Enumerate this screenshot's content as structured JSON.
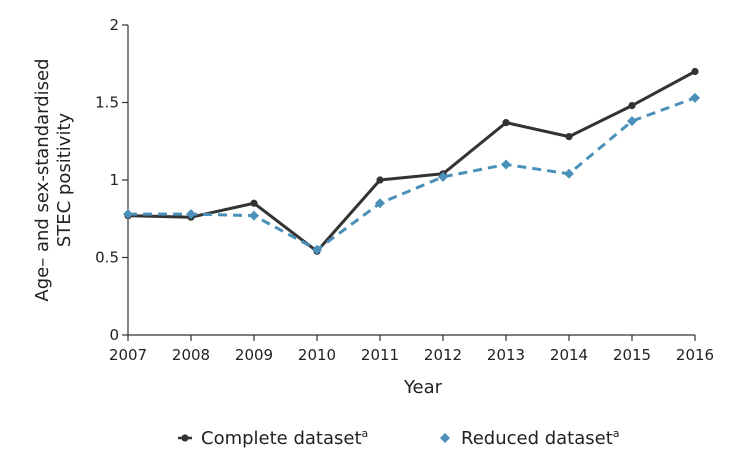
{
  "chart_data": {
    "type": "line",
    "x": [
      2007,
      2008,
      2009,
      2010,
      2011,
      2012,
      2013,
      2014,
      2015,
      2016
    ],
    "categories": [
      "2007",
      "2008",
      "2009",
      "2010",
      "2011",
      "2012",
      "2013",
      "2014",
      "2015",
      "2016"
    ],
    "series": [
      {
        "name": "Complete dataset",
        "name_superscript": "a",
        "values": [
          0.77,
          0.76,
          0.85,
          0.54,
          1.0,
          1.04,
          1.37,
          1.28,
          1.48,
          1.7
        ],
        "color": "#333333",
        "line_style": "solid",
        "marker": "circle"
      },
      {
        "name": "Reduced dataset",
        "name_superscript": "a",
        "values": [
          0.78,
          0.78,
          0.77,
          0.55,
          0.85,
          1.02,
          1.1,
          1.04,
          1.38,
          1.53
        ],
        "color": "#4a90b8",
        "line_style": "dashed",
        "marker": "diamond"
      }
    ],
    "xlabel": "Year",
    "ylabel_lines": [
      "Age– and sex-standardised",
      "STEC positivity"
    ],
    "yticks": [
      "0",
      "0.5",
      "1",
      "1.5",
      "2"
    ],
    "ytick_values": [
      0,
      0.5,
      1,
      1.5,
      2
    ],
    "ylim": [
      0,
      2
    ],
    "grid": false,
    "legend_position": "bottom"
  }
}
